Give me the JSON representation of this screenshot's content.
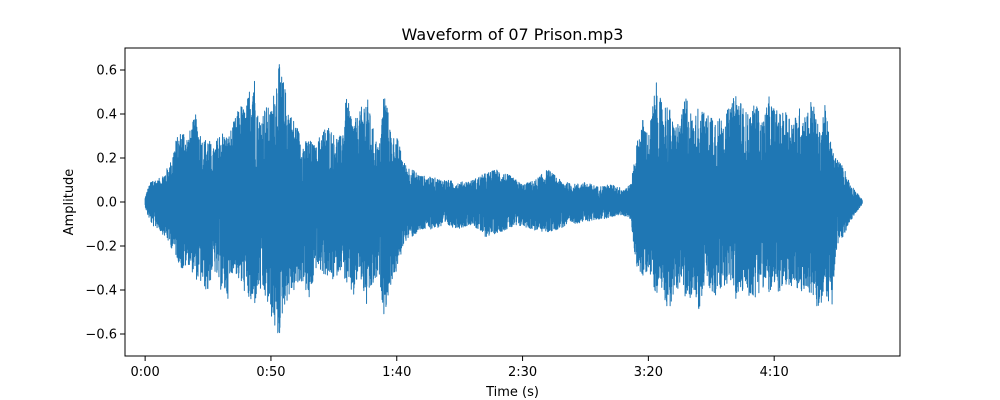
{
  "chart_data": {
    "type": "line",
    "title": "Waveform of 07 Prison.mp3",
    "xlabel": "Time (s)",
    "ylabel": "Amplitude",
    "xlim": [
      -8,
      300
    ],
    "ylim": [
      -0.7,
      0.7
    ],
    "x_ticks": [
      {
        "value": 0,
        "label": "0:00"
      },
      {
        "value": 50,
        "label": "0:50"
      },
      {
        "value": 100,
        "label": "1:40"
      },
      {
        "value": 150,
        "label": "2:30"
      },
      {
        "value": 200,
        "label": "3:20"
      },
      {
        "value": 250,
        "label": "4:10"
      }
    ],
    "y_ticks": [
      {
        "value": 0.6,
        "label": "0.6"
      },
      {
        "value": 0.4,
        "label": "0.4"
      },
      {
        "value": 0.2,
        "label": "0.2"
      },
      {
        "value": 0.0,
        "label": "0.0"
      },
      {
        "value": -0.2,
        "label": "−0.2"
      },
      {
        "value": -0.4,
        "label": "−0.4"
      },
      {
        "value": -0.6,
        "label": "−0.6"
      }
    ],
    "grid": false,
    "legend": false,
    "series": [
      {
        "color": "#1f77b4",
        "envelope": {
          "t": [
            0,
            1,
            3,
            5,
            8,
            10,
            12,
            15,
            17,
            20,
            23,
            25,
            27,
            30,
            33,
            35,
            38,
            40,
            43,
            45,
            48,
            50,
            53,
            55,
            58,
            60,
            63,
            65,
            68,
            70,
            73,
            75,
            78,
            80,
            83,
            85,
            88,
            90,
            93,
            95,
            98,
            100,
            103,
            106,
            110,
            115,
            120,
            125,
            130,
            135,
            140,
            145,
            150,
            155,
            160,
            165,
            170,
            175,
            180,
            185,
            188,
            190,
            193,
            195,
            198,
            200,
            203,
            205,
            208,
            210,
            213,
            215,
            218,
            220,
            223,
            225,
            228,
            230,
            233,
            235,
            238,
            240,
            243,
            245,
            248,
            250,
            253,
            255,
            258,
            260,
            263,
            265,
            268,
            270,
            273,
            275,
            278,
            280,
            283,
            285
          ],
          "upper": [
            0.02,
            0.06,
            0.11,
            0.1,
            0.14,
            0.18,
            0.28,
            0.34,
            0.3,
            0.4,
            0.28,
            0.3,
            0.24,
            0.33,
            0.3,
            0.36,
            0.45,
            0.42,
            0.64,
            0.38,
            0.44,
            0.42,
            0.64,
            0.55,
            0.4,
            0.36,
            0.27,
            0.29,
            0.25,
            0.33,
            0.35,
            0.31,
            0.3,
            0.48,
            0.37,
            0.4,
            0.5,
            0.36,
            0.24,
            0.53,
            0.3,
            0.3,
            0.18,
            0.15,
            0.12,
            0.11,
            0.1,
            0.09,
            0.1,
            0.13,
            0.15,
            0.12,
            0.08,
            0.1,
            0.15,
            0.1,
            0.08,
            0.09,
            0.07,
            0.08,
            0.07,
            0.06,
            0.08,
            0.25,
            0.39,
            0.3,
            0.55,
            0.46,
            0.45,
            0.35,
            0.38,
            0.5,
            0.36,
            0.45,
            0.39,
            0.42,
            0.38,
            0.4,
            0.44,
            0.52,
            0.42,
            0.4,
            0.46,
            0.36,
            0.48,
            0.43,
            0.4,
            0.42,
            0.38,
            0.43,
            0.41,
            0.48,
            0.32,
            0.45,
            0.24,
            0.2,
            0.15,
            0.09,
            0.04,
            0.01
          ],
          "lower": [
            -0.02,
            -0.06,
            -0.11,
            -0.12,
            -0.16,
            -0.2,
            -0.24,
            -0.32,
            -0.28,
            -0.35,
            -0.38,
            -0.42,
            -0.3,
            -0.4,
            -0.44,
            -0.3,
            -0.38,
            -0.42,
            -0.5,
            -0.4,
            -0.45,
            -0.52,
            -0.64,
            -0.48,
            -0.42,
            -0.4,
            -0.36,
            -0.47,
            -0.3,
            -0.32,
            -0.35,
            -0.36,
            -0.3,
            -0.38,
            -0.44,
            -0.32,
            -0.48,
            -0.4,
            -0.34,
            -0.52,
            -0.36,
            -0.32,
            -0.18,
            -0.16,
            -0.13,
            -0.12,
            -0.11,
            -0.12,
            -0.1,
            -0.16,
            -0.14,
            -0.12,
            -0.11,
            -0.13,
            -0.14,
            -0.12,
            -0.1,
            -0.09,
            -0.08,
            -0.07,
            -0.06,
            -0.06,
            -0.08,
            -0.28,
            -0.36,
            -0.3,
            -0.42,
            -0.38,
            -0.5,
            -0.44,
            -0.36,
            -0.48,
            -0.4,
            -0.5,
            -0.34,
            -0.45,
            -0.42,
            -0.38,
            -0.36,
            -0.46,
            -0.4,
            -0.43,
            -0.44,
            -0.38,
            -0.42,
            -0.42,
            -0.4,
            -0.44,
            -0.36,
            -0.45,
            -0.38,
            -0.45,
            -0.5,
            -0.42,
            -0.48,
            -0.2,
            -0.15,
            -0.09,
            -0.04,
            -0.01
          ]
        }
      }
    ]
  }
}
